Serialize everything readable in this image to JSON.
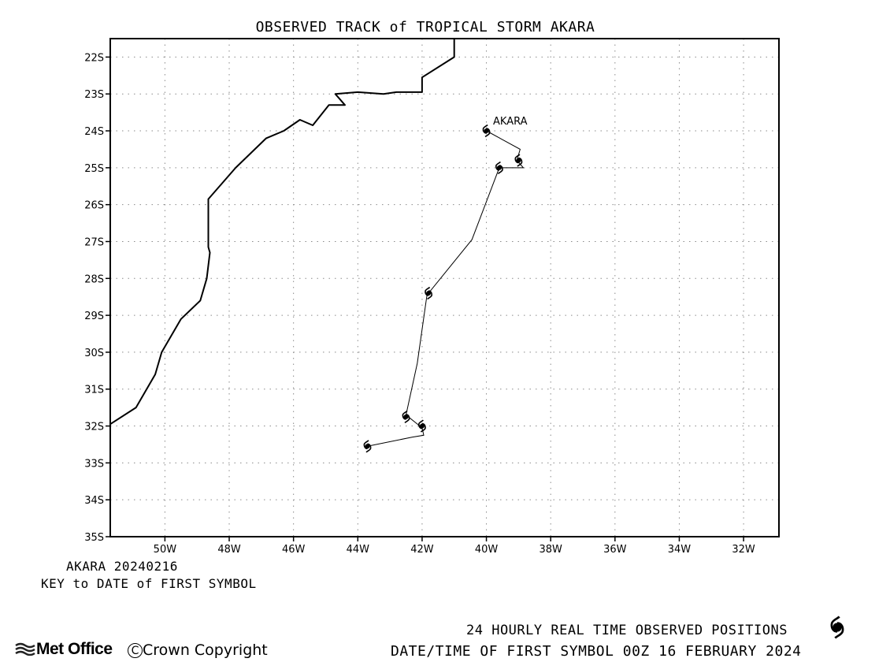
{
  "title": "OBSERVED TRACK of TROPICAL STORM AKARA",
  "map": {
    "lon_range": [
      -51.7,
      -30.9
    ],
    "lat_range": [
      -35,
      -21.5
    ],
    "grid": true,
    "lat_ticks": [
      {
        "v": -22,
        "label": "22S"
      },
      {
        "v": -23,
        "label": "23S"
      },
      {
        "v": -24,
        "label": "24S"
      },
      {
        "v": -25,
        "label": "25S"
      },
      {
        "v": -26,
        "label": "26S"
      },
      {
        "v": -27,
        "label": "27S"
      },
      {
        "v": -28,
        "label": "28S"
      },
      {
        "v": -29,
        "label": "29S"
      },
      {
        "v": -30,
        "label": "30S"
      },
      {
        "v": -31,
        "label": "31S"
      },
      {
        "v": -32,
        "label": "32S"
      },
      {
        "v": -33,
        "label": "33S"
      },
      {
        "v": -34,
        "label": "34S"
      },
      {
        "v": -35,
        "label": "35S"
      }
    ],
    "lon_ticks": [
      {
        "v": -50,
        "label": "50W"
      },
      {
        "v": -48,
        "label": "48W"
      },
      {
        "v": -46,
        "label": "46W"
      },
      {
        "v": -44,
        "label": "44W"
      },
      {
        "v": -42,
        "label": "42W"
      },
      {
        "v": -40,
        "label": "40W"
      },
      {
        "v": -38,
        "label": "38W"
      },
      {
        "v": -36,
        "label": "36W"
      },
      {
        "v": -34,
        "label": "34W"
      },
      {
        "v": -32,
        "label": "32W"
      }
    ],
    "coastline": [
      [
        -51.7,
        -31.95
      ],
      [
        -50.9,
        -31.5
      ],
      [
        -50.3,
        -30.6
      ],
      [
        -50.1,
        -30.0
      ],
      [
        -49.5,
        -29.1
      ],
      [
        -48.9,
        -28.6
      ],
      [
        -48.7,
        -28.0
      ],
      [
        -48.6,
        -27.3
      ],
      [
        -48.65,
        -27.15
      ],
      [
        -48.65,
        -25.85
      ],
      [
        -47.8,
        -25.0
      ],
      [
        -46.85,
        -24.2
      ],
      [
        -46.3,
        -24.0
      ],
      [
        -45.8,
        -23.7
      ],
      [
        -45.4,
        -23.85
      ],
      [
        -44.9,
        -23.3
      ],
      [
        -44.4,
        -23.3
      ],
      [
        -44.7,
        -23.0
      ],
      [
        -44.0,
        -22.95
      ],
      [
        -43.2,
        -23.0
      ],
      [
        -42.8,
        -22.95
      ],
      [
        -42.0,
        -22.95
      ],
      [
        -42.0,
        -22.55
      ],
      [
        -41.0,
        -22.0
      ],
      [
        -41.0,
        -21.5
      ]
    ]
  },
  "storm": {
    "name": "AKARA",
    "label": "AKARA",
    "track": [
      [
        -40.0,
        -24.0
      ],
      [
        -38.95,
        -24.5
      ],
      [
        -39.05,
        -24.8
      ],
      [
        -38.85,
        -25.0
      ],
      [
        -39.6,
        -25.0
      ],
      [
        -40.45,
        -26.95
      ],
      [
        -41.85,
        -28.45
      ],
      [
        -42.15,
        -30.3
      ],
      [
        -42.5,
        -31.7
      ],
      [
        -42.0,
        -32.05
      ],
      [
        -41.95,
        -32.25
      ],
      [
        -42.3,
        -32.3
      ],
      [
        -43.7,
        -32.55
      ]
    ],
    "symbols": [
      [
        -40.0,
        -24.0
      ],
      [
        -39.0,
        -24.8
      ],
      [
        -39.6,
        -25.0
      ],
      [
        -41.8,
        -28.4
      ],
      [
        -42.5,
        -31.75
      ],
      [
        -42.0,
        -32.0
      ],
      [
        -43.7,
        -32.55
      ]
    ]
  },
  "key": {
    "storm_date": "AKARA 20240216",
    "key_text": "KEY to DATE of FIRST SYMBOL"
  },
  "footer": {
    "positions_text": "24 HOURLY REAL TIME OBSERVED POSITIONS",
    "first_symbol_text": "DATE/TIME OF FIRST SYMBOL 00Z 16 FEBRUARY 2024",
    "brand": "Met Office",
    "copyright": "Crown Copyright"
  },
  "colors": {
    "line": "#000000",
    "grid": "#8a8a8a",
    "background": "#ffffff"
  }
}
